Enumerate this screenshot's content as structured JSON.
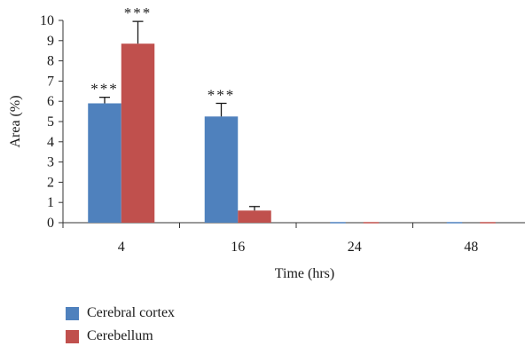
{
  "chart_data": {
    "type": "bar",
    "categories": [
      "4",
      "16",
      "24",
      "48"
    ],
    "series": [
      {
        "name": "Cerebral cortex",
        "values": [
          5.9,
          5.25,
          0,
          0
        ],
        "errors": [
          0.3,
          0.65,
          0,
          0
        ],
        "color": "#4f81bd"
      },
      {
        "name": "Cerebellum",
        "values": [
          8.85,
          0.6,
          0,
          0
        ],
        "errors": [
          1.1,
          0.2,
          0,
          0
        ],
        "color": "#c0504d"
      }
    ],
    "annotations": [
      {
        "category": "4",
        "series": "Cerebral cortex",
        "text": "***"
      },
      {
        "category": "4",
        "series": "Cerebellum",
        "text": "***"
      },
      {
        "category": "16",
        "series": "Cerebral cortex",
        "text": "***"
      }
    ],
    "xlabel": "Time (hrs)",
    "ylabel": "Area (%)",
    "ylim": [
      0,
      10
    ],
    "yticks": [
      "0",
      "1",
      "2",
      "3",
      "4",
      "5",
      "6",
      "7",
      "8",
      "9",
      "10"
    ],
    "grid": false,
    "legend_position": "bottom-left"
  }
}
